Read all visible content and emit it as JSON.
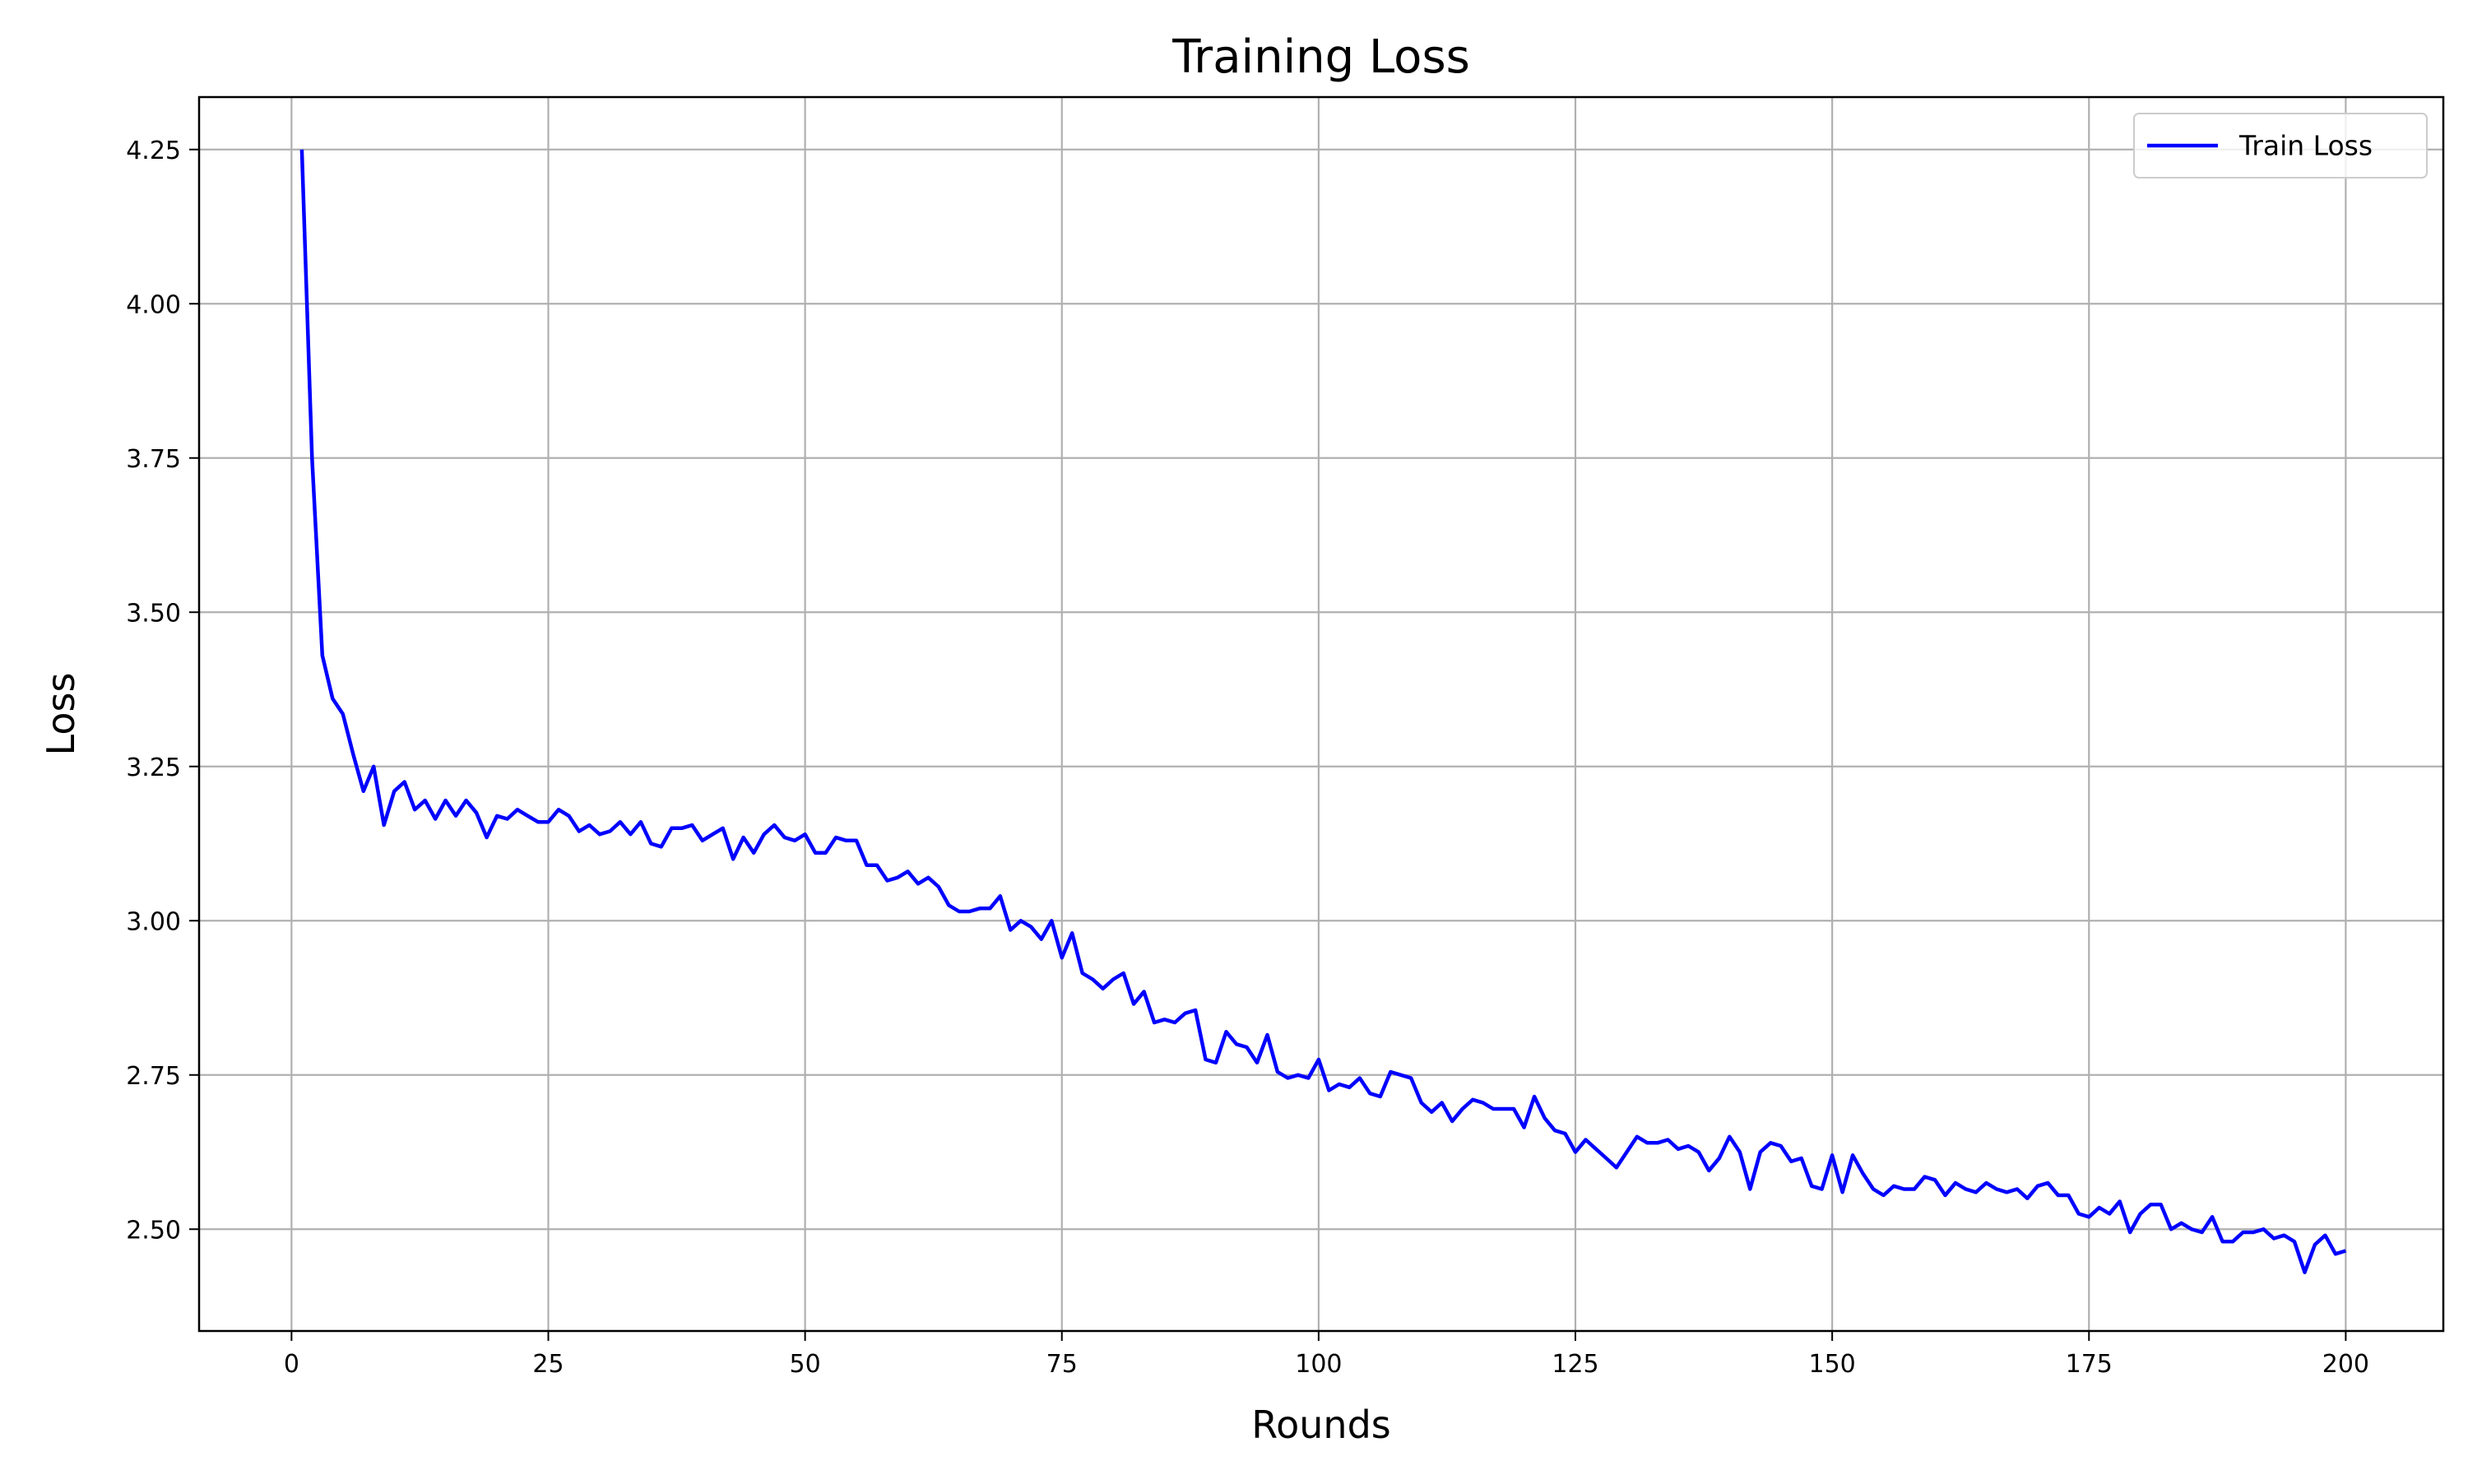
{
  "chart_data": {
    "type": "line",
    "title": "Training Loss",
    "xlabel": "Rounds",
    "ylabel": "Loss",
    "xlim": [
      -9,
      209.5
    ],
    "ylim": [
      2.335,
      4.335
    ],
    "xticks": [
      0,
      25,
      50,
      75,
      100,
      125,
      150,
      175,
      200
    ],
    "xtick_labels": [
      "0",
      "25",
      "50",
      "75",
      "100",
      "125",
      "150",
      "175",
      "200"
    ],
    "yticks": [
      2.5,
      2.75,
      3.0,
      3.25,
      3.5,
      3.75,
      4.0,
      4.25
    ],
    "ytick_labels": [
      "2.50",
      "2.75",
      "3.00",
      "3.25",
      "3.50",
      "3.75",
      "4.00",
      "4.25"
    ],
    "grid": true,
    "legend_position": "top-right",
    "series": [
      {
        "name": "Train Loss",
        "color": "#0000ff",
        "x_start": 1,
        "x_step": 1,
        "values": [
          4.25,
          3.75,
          3.43,
          3.36,
          3.335,
          3.27,
          3.21,
          3.25,
          3.155,
          3.21,
          3.225,
          3.18,
          3.195,
          3.165,
          3.195,
          3.17,
          3.195,
          3.175,
          3.135,
          3.17,
          3.165,
          3.18,
          3.17,
          3.16,
          3.16,
          3.18,
          3.17,
          3.145,
          3.155,
          3.14,
          3.145,
          3.16,
          3.14,
          3.16,
          3.125,
          3.12,
          3.15,
          3.15,
          3.155,
          3.13,
          3.14,
          3.15,
          3.1,
          3.135,
          3.11,
          3.14,
          3.155,
          3.135,
          3.13,
          3.14,
          3.11,
          3.11,
          3.135,
          3.13,
          3.13,
          3.09,
          3.09,
          3.065,
          3.07,
          3.08,
          3.06,
          3.07,
          3.055,
          3.025,
          3.015,
          3.015,
          3.02,
          3.02,
          3.04,
          2.985,
          3.0,
          2.99,
          2.97,
          3.0,
          2.94,
          2.98,
          2.915,
          2.905,
          2.89,
          2.905,
          2.915,
          2.865,
          2.885,
          2.835,
          2.84,
          2.835,
          2.85,
          2.855,
          2.775,
          2.77,
          2.82,
          2.8,
          2.795,
          2.77,
          2.815,
          2.755,
          2.745,
          2.75,
          2.745,
          2.775,
          2.725,
          2.735,
          2.73,
          2.745,
          2.72,
          2.715,
          2.755,
          2.75,
          2.745,
          2.705,
          2.69,
          2.705,
          2.675,
          2.695,
          2.71,
          2.705,
          2.695,
          2.695,
          2.695,
          2.665,
          2.715,
          2.68,
          2.66,
          2.655,
          2.625,
          2.645,
          2.63,
          2.615,
          2.6,
          2.625,
          2.65,
          2.64,
          2.64,
          2.645,
          2.63,
          2.635,
          2.625,
          2.595,
          2.615,
          2.65,
          2.625,
          2.565,
          2.625,
          2.64,
          2.635,
          2.61,
          2.615,
          2.57,
          2.565,
          2.62,
          2.56,
          2.62,
          2.59,
          2.565,
          2.555,
          2.57,
          2.565,
          2.565,
          2.585,
          2.58,
          2.555,
          2.575,
          2.565,
          2.56,
          2.575,
          2.565,
          2.56,
          2.565,
          2.55,
          2.57,
          2.575,
          2.555,
          2.555,
          2.525,
          2.52,
          2.535,
          2.525,
          2.545,
          2.495,
          2.525,
          2.54,
          2.54,
          2.5,
          2.51,
          2.5,
          2.495,
          2.52,
          2.48,
          2.48,
          2.495,
          2.495,
          2.5,
          2.485,
          2.49,
          2.48,
          2.43,
          2.475,
          2.49,
          2.46,
          2.465
        ]
      }
    ]
  }
}
